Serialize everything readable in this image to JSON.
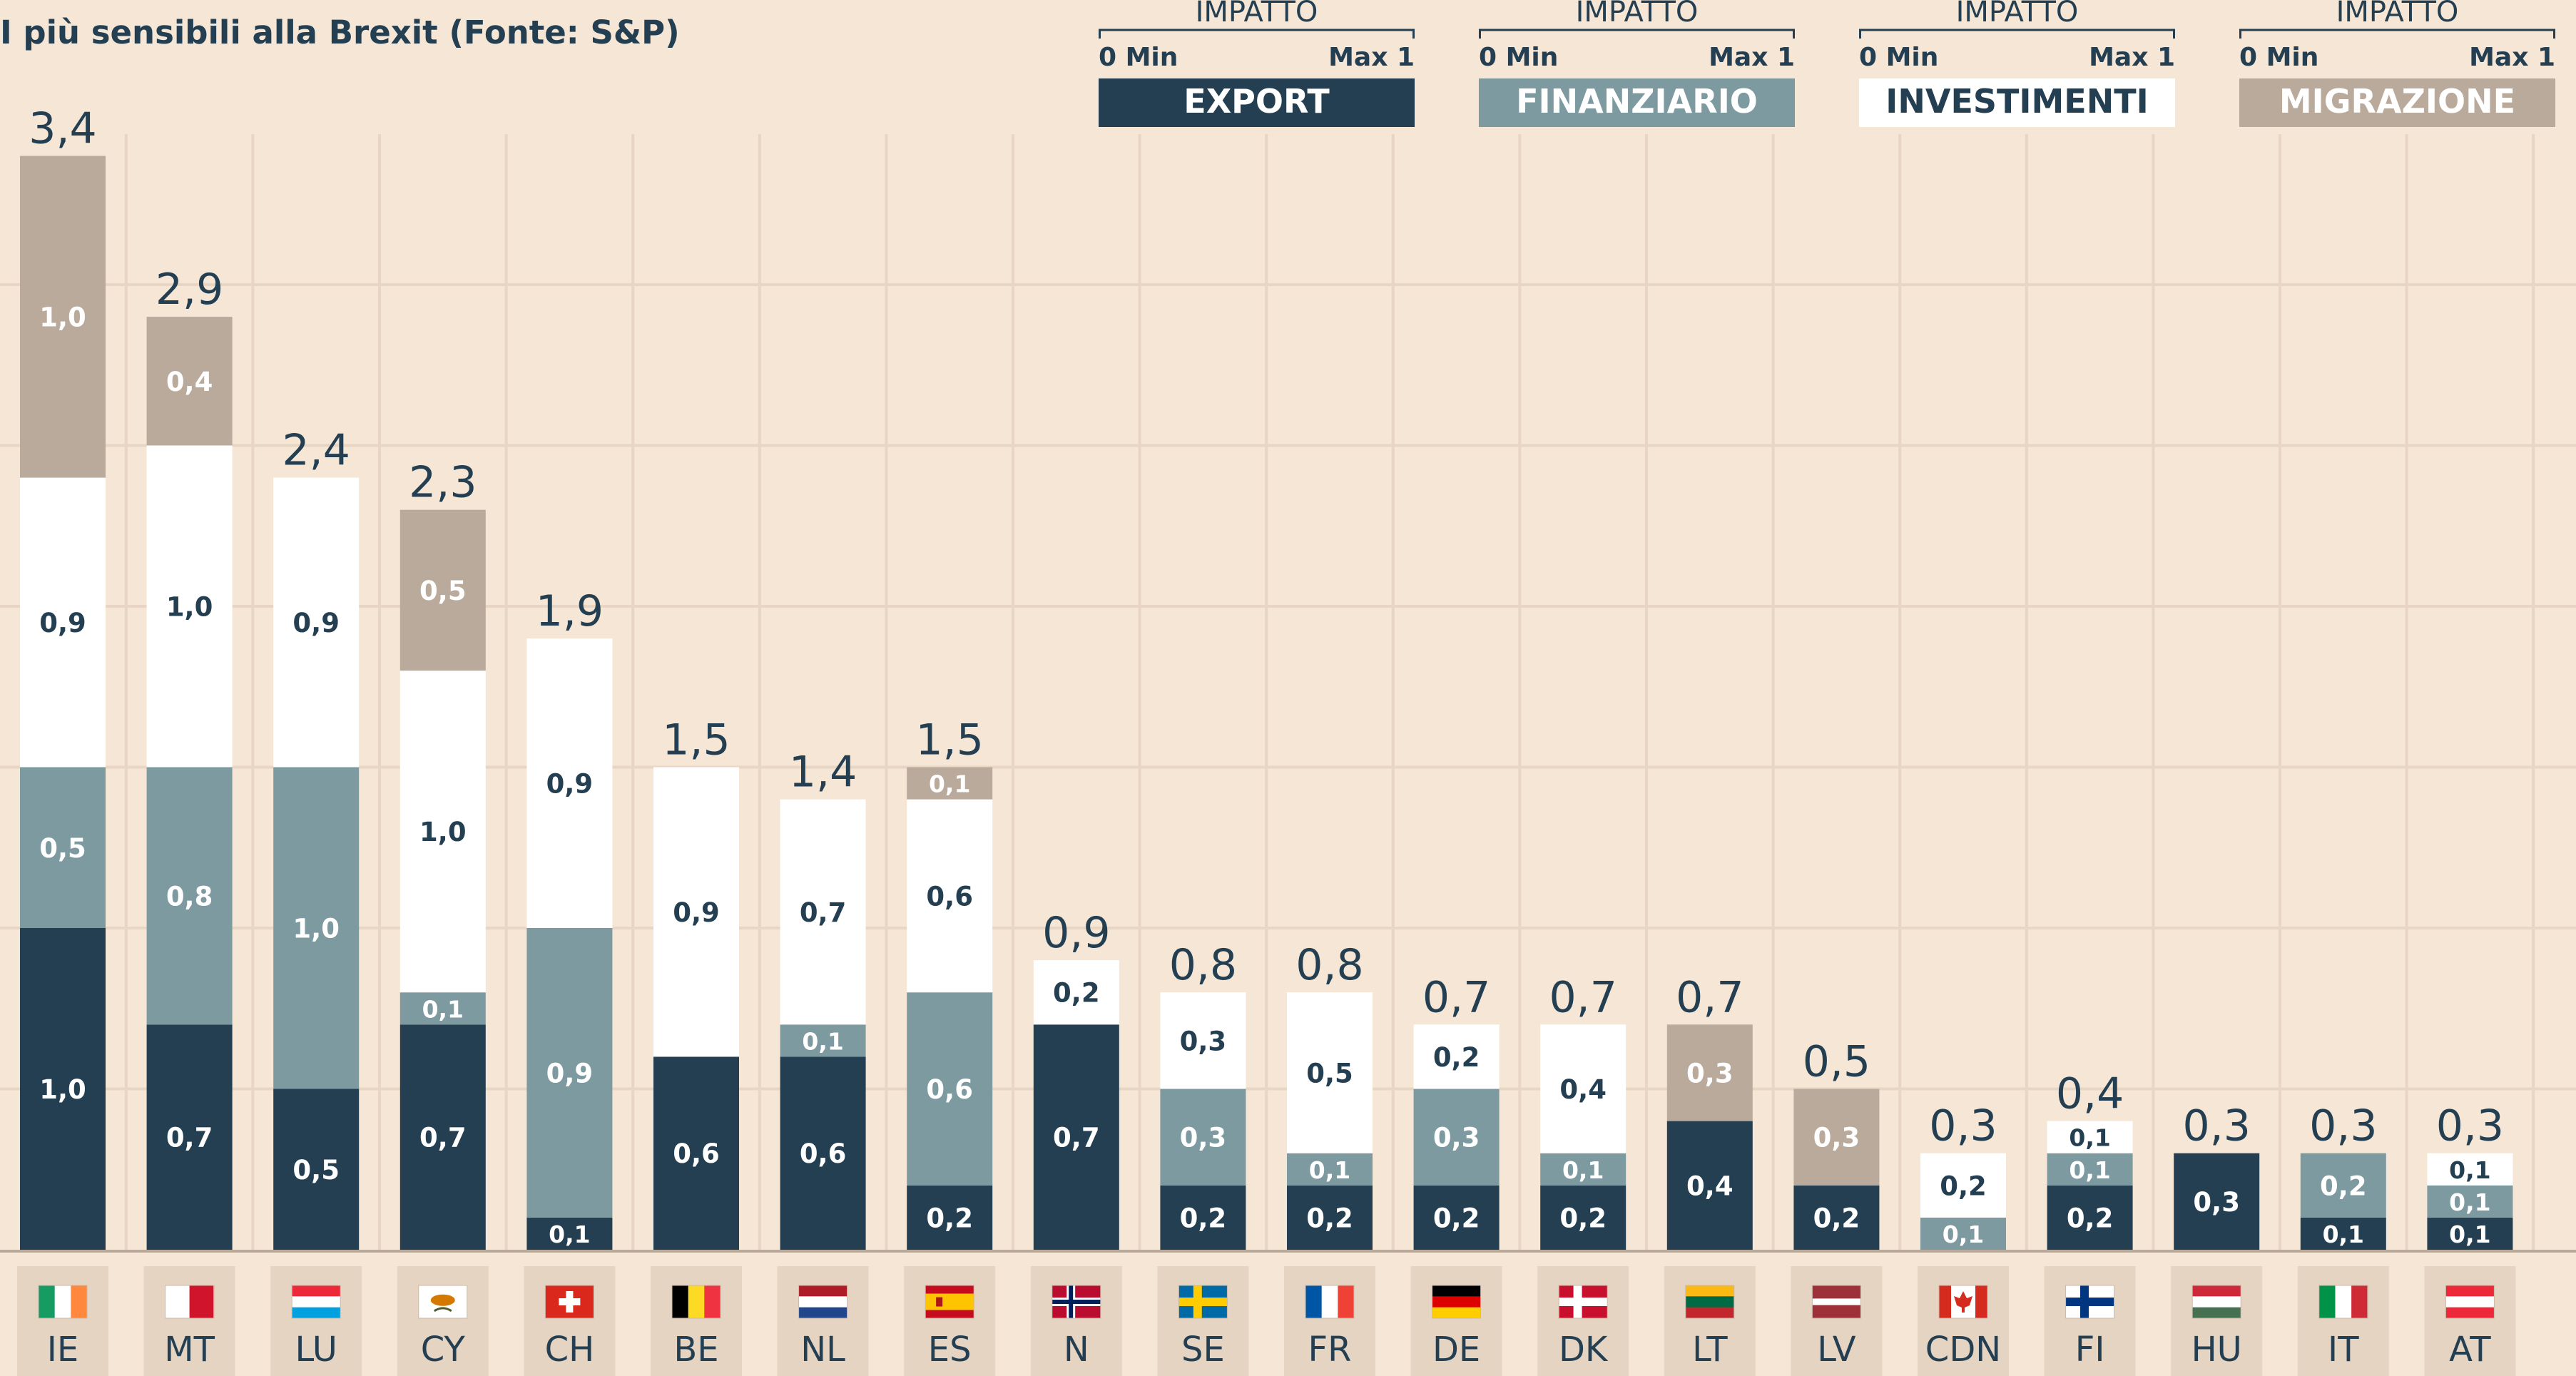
{
  "chart_data": {
    "type": "bar",
    "stacked": true,
    "title": "I più sensibili alla Brexit (Fonte: S&P)",
    "ylim": [
      0,
      3.5
    ],
    "grid": true,
    "decimal_separator": ",",
    "legend": {
      "placement": "top-right",
      "heading": "IMPATTO",
      "min_label": "0 Min",
      "max_label": "Max 1",
      "items": [
        {
          "key": "export",
          "label": "EXPORT",
          "color": "#243f52",
          "text_color": "#ffffff"
        },
        {
          "key": "finanziario",
          "label": "FINANZIARIO",
          "color": "#7e9aa1",
          "text_color": "#ffffff"
        },
        {
          "key": "investimenti",
          "label": "INVESTIMENTI",
          "color": "#ffffff",
          "text_color": "#243f52"
        },
        {
          "key": "migrazione",
          "label": "MIGRAZIONE",
          "color": "#b9aa9c",
          "text_color": "#ffffff"
        }
      ]
    },
    "categories": [
      "IE",
      "MT",
      "LU",
      "CY",
      "CH",
      "BE",
      "NL",
      "ES",
      "N",
      "SE",
      "FR",
      "DE",
      "DK",
      "LT",
      "LV",
      "CDN",
      "FI",
      "HU",
      "IT",
      "AT"
    ],
    "totals": [
      3.4,
      2.9,
      2.4,
      2.3,
      1.9,
      1.5,
      1.4,
      1.5,
      0.9,
      0.8,
      0.8,
      0.7,
      0.7,
      0.7,
      0.5,
      0.3,
      0.4,
      0.3,
      0.3,
      0.3
    ],
    "series": [
      {
        "key": "export",
        "values": [
          1.0,
          0.7,
          0.5,
          0.7,
          0.1,
          0.6,
          0.6,
          0.2,
          0.7,
          0.2,
          0.2,
          0.2,
          0.2,
          0.4,
          0.2,
          0,
          0.2,
          0.3,
          0.1,
          0.1
        ]
      },
      {
        "key": "finanziario",
        "values": [
          0.5,
          0.8,
          1.0,
          0.1,
          0.9,
          0,
          0.1,
          0.6,
          0,
          0.3,
          0.1,
          0.3,
          0.1,
          0,
          0,
          0.1,
          0.1,
          0,
          0.2,
          0.1
        ]
      },
      {
        "key": "investimenti",
        "values": [
          0.9,
          1.0,
          0.9,
          1.0,
          0.9,
          0.9,
          0.7,
          0.6,
          0.2,
          0.3,
          0.5,
          0.2,
          0.4,
          0,
          0,
          0.2,
          0.1,
          0,
          0,
          0.1
        ]
      },
      {
        "key": "migrazione",
        "values": [
          1.0,
          0.4,
          0,
          0.5,
          0,
          0,
          0,
          0.1,
          0,
          0,
          0,
          0,
          0,
          0.3,
          0.3,
          0,
          0,
          0,
          0,
          0
        ]
      }
    ],
    "flags": {
      "IE": {
        "type": "v",
        "colors": [
          "#169b62",
          "#ffffff",
          "#ff883e"
        ]
      },
      "MT": {
        "type": "v",
        "colors": [
          "#ffffff",
          "#cf142b"
        ]
      },
      "LU": {
        "type": "h",
        "colors": [
          "#ed2939",
          "#ffffff",
          "#00a1de"
        ]
      },
      "CY": {
        "type": "cy"
      },
      "CH": {
        "type": "ch"
      },
      "BE": {
        "type": "v",
        "colors": [
          "#000000",
          "#fdda24",
          "#ef3340"
        ]
      },
      "NL": {
        "type": "h",
        "colors": [
          "#ae1c28",
          "#ffffff",
          "#21468b"
        ]
      },
      "ES": {
        "type": "es"
      },
      "N": {
        "type": "nordic",
        "colors": [
          "#ba0c2f",
          "#ffffff",
          "#00205b"
        ]
      },
      "SE": {
        "type": "nordic",
        "colors": [
          "#006aa7",
          "#fecc00"
        ]
      },
      "FR": {
        "type": "v",
        "colors": [
          "#0055a4",
          "#ffffff",
          "#ef4135"
        ]
      },
      "DE": {
        "type": "h",
        "colors": [
          "#000000",
          "#dd0000",
          "#ffce00"
        ]
      },
      "DK": {
        "type": "nordic",
        "colors": [
          "#c8102e",
          "#ffffff"
        ]
      },
      "LT": {
        "type": "h",
        "colors": [
          "#fdb913",
          "#006a44",
          "#c1272d"
        ]
      },
      "LV": {
        "type": "lv"
      },
      "CDN": {
        "type": "ca"
      },
      "FI": {
        "type": "nordic",
        "colors": [
          "#ffffff",
          "#003580"
        ]
      },
      "HU": {
        "type": "h",
        "colors": [
          "#ce2939",
          "#ffffff",
          "#477050"
        ]
      },
      "IT": {
        "type": "v",
        "colors": [
          "#009246",
          "#ffffff",
          "#ce2b37"
        ]
      },
      "AT": {
        "type": "h",
        "colors": [
          "#ed2939",
          "#ffffff",
          "#ed2939"
        ]
      }
    }
  }
}
